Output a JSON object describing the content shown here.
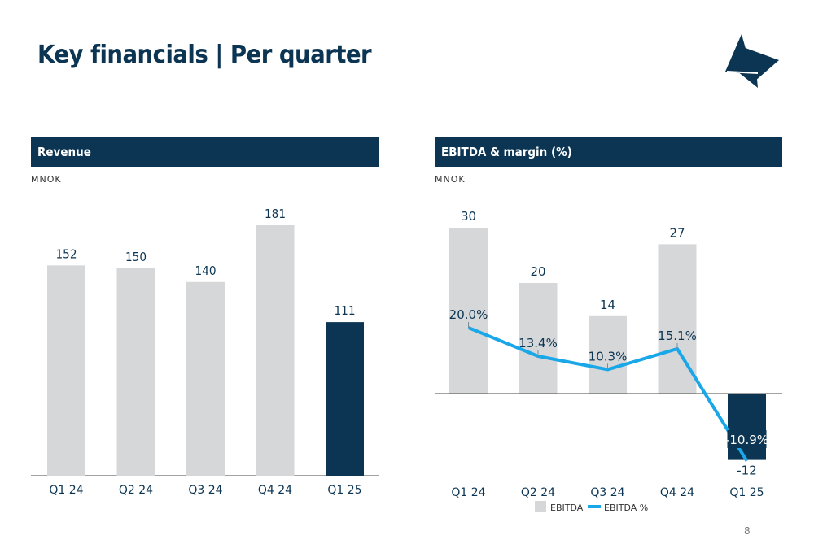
{
  "header": {
    "title": "Key financials | Per quarter"
  },
  "page_number": "8",
  "colors": {
    "navy": "#0b3552",
    "bar_grey": "#d6d7d9",
    "line_blue": "#1aa7e8"
  },
  "chart_data": [
    {
      "type": "bar",
      "title": "Revenue",
      "unit": "MNOK",
      "categories": [
        "Q1 24",
        "Q2 24",
        "Q3 24",
        "Q4 24",
        "Q1 25"
      ],
      "values": [
        152,
        150,
        140,
        181,
        111
      ],
      "labels": [
        "152",
        "150",
        "140",
        "181",
        "111"
      ],
      "highlight_index": 4,
      "ylim": [
        0,
        200
      ]
    },
    {
      "type": "bar",
      "title": "EBITDA & margin (%)",
      "unit": "MNOK",
      "categories": [
        "Q1 24",
        "Q2 24",
        "Q3 24",
        "Q4 24",
        "Q1 25"
      ],
      "series": [
        {
          "name": "EBITDA",
          "kind": "bar",
          "values": [
            30,
            20,
            14,
            27,
            -12
          ],
          "labels": [
            "30",
            "20",
            "14",
            "27",
            "-12"
          ]
        },
        {
          "name": "EBITDA %",
          "kind": "line",
          "values": [
            20.0,
            13.4,
            10.3,
            15.1,
            -10.9
          ],
          "labels": [
            "20.0%",
            "13.4%",
            "10.3%",
            "15.1%",
            "-10.9%"
          ]
        }
      ],
      "highlight_index": 4,
      "legend": "bottom"
    }
  ]
}
